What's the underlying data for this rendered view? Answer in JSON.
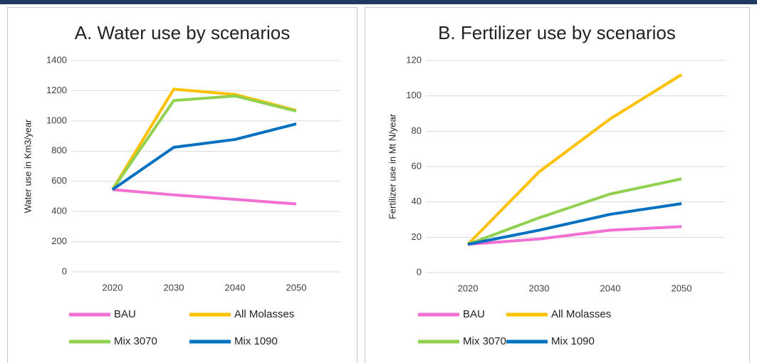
{
  "chart_data": [
    {
      "type": "line",
      "title": "A. Water use by scenarios",
      "ylabel": "Water use in  Km3/year",
      "categories": [
        "2020",
        "2030",
        "2040",
        "2050"
      ],
      "series": [
        {
          "name": "BAU",
          "color": "#f26fd3",
          "values": [
            545,
            510,
            480,
            450
          ]
        },
        {
          "name": "All Molasses",
          "color": "#ffc000",
          "values": [
            545,
            1210,
            1175,
            1070
          ]
        },
        {
          "name": "Mix 3070",
          "color": "#92d050",
          "values": [
            545,
            1135,
            1165,
            1065
          ]
        },
        {
          "name": "Mix 1090",
          "color": "#0070c0",
          "values": [
            545,
            825,
            877,
            980
          ]
        }
      ],
      "ylim": [
        0,
        1400
      ],
      "yticks": [
        0,
        200,
        400,
        600,
        800,
        1000,
        1200,
        1400
      ],
      "grid": true
    },
    {
      "type": "line",
      "title": "B. Fertilizer use by scenarios",
      "ylabel": "Fertilizer use in Mt N/year",
      "categories": [
        "2020",
        "2030",
        "2040",
        "2050"
      ],
      "series": [
        {
          "name": "BAU",
          "color": "#f26fd3",
          "values": [
            16,
            19,
            24,
            26
          ]
        },
        {
          "name": "All Molasses",
          "color": "#ffc000",
          "values": [
            16,
            57,
            87,
            112
          ]
        },
        {
          "name": "Mix 3070",
          "color": "#92d050",
          "values": [
            16,
            31,
            44.5,
            53
          ]
        },
        {
          "name": "Mix 1090",
          "color": "#0070c0",
          "values": [
            16,
            24,
            33,
            39
          ]
        }
      ],
      "ylim": [
        0,
        120
      ],
      "yticks": [
        0,
        20,
        40,
        60,
        80,
        100,
        120
      ],
      "grid": true
    }
  ]
}
